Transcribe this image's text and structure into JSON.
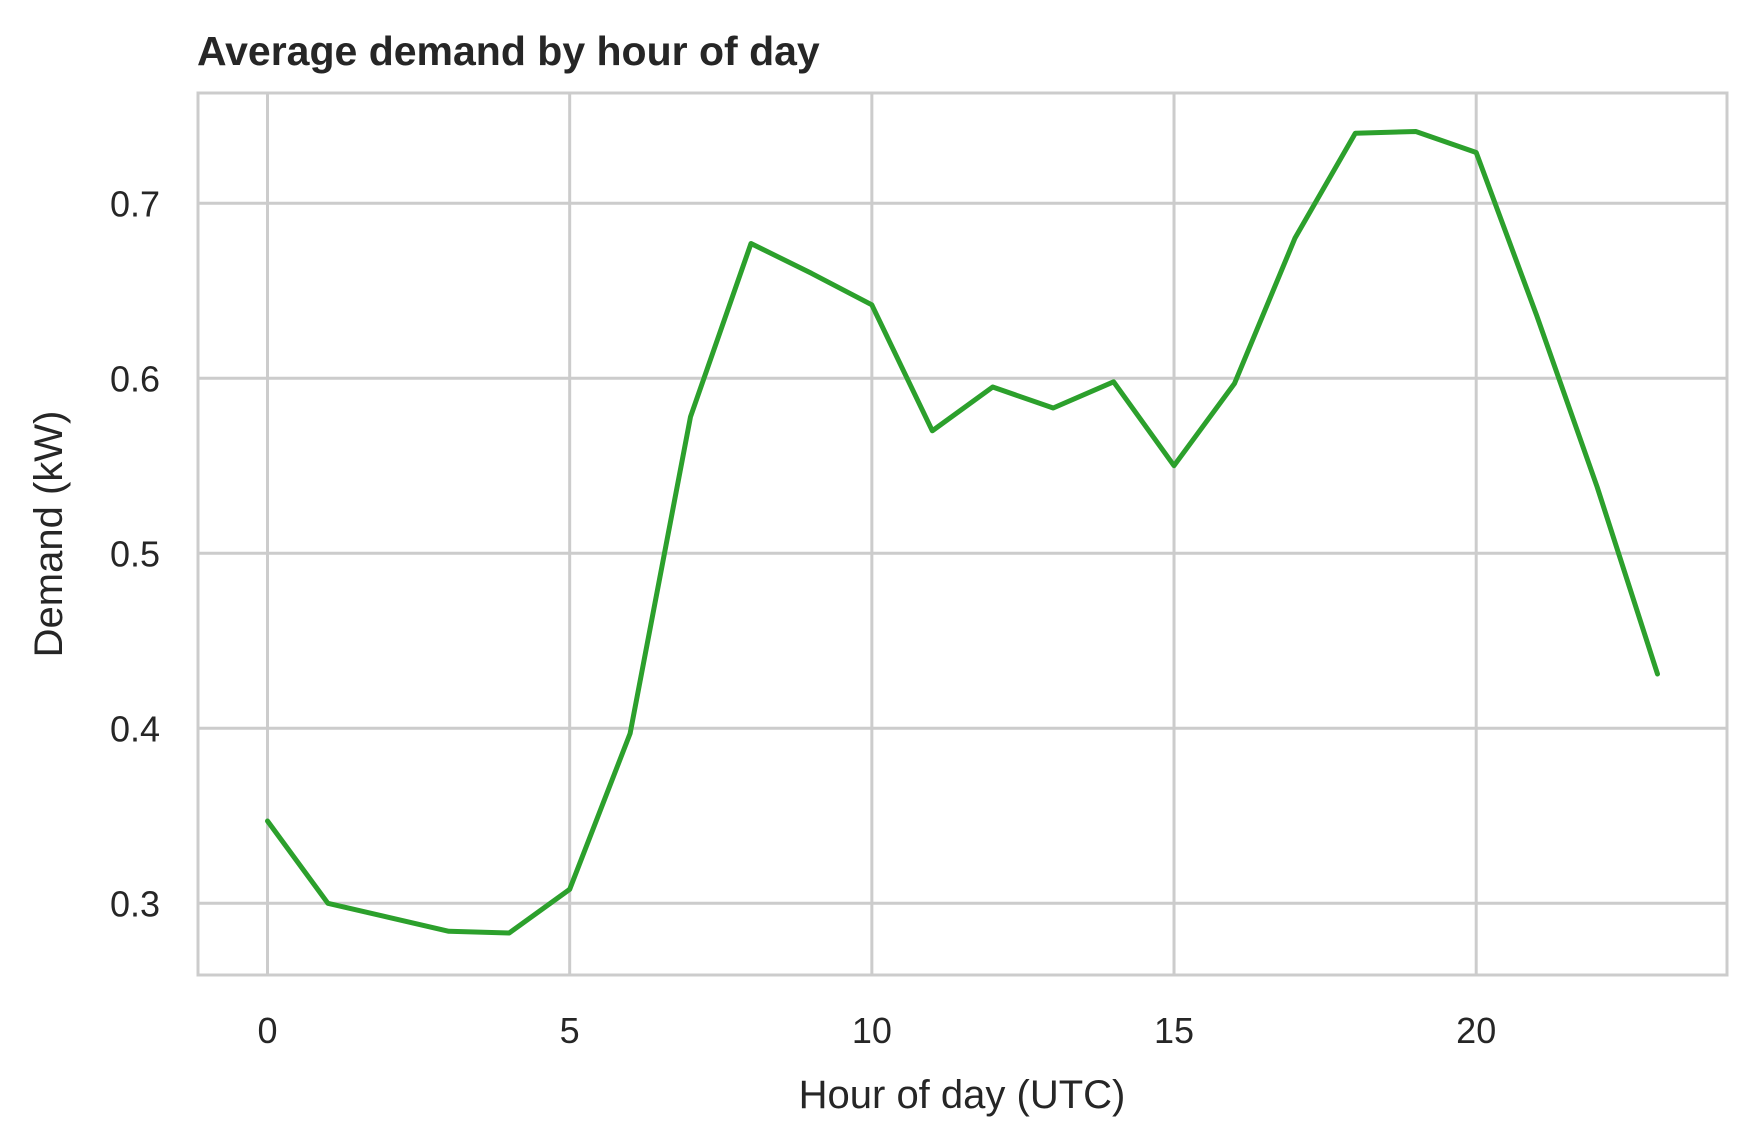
{
  "chart_data": {
    "type": "line",
    "title": "Average demand by hour of day",
    "xlabel": "Hour of day (UTC)",
    "ylabel": "Demand (kW)",
    "xlim": [
      -1.15,
      24.15
    ],
    "ylim": [
      0.259,
      0.763
    ],
    "xticks": [
      0,
      5,
      10,
      15,
      20
    ],
    "yticks": [
      0.3,
      0.4,
      0.5,
      0.6,
      0.7
    ],
    "ytick_labels": [
      "0.3",
      "0.4",
      "0.5",
      "0.6",
      "0.7"
    ],
    "xtick_labels": [
      "0",
      "5",
      "10",
      "15",
      "20"
    ],
    "grid": true,
    "series": [
      {
        "color": "#2ca02c",
        "x": [
          0,
          1,
          2,
          3,
          4,
          5,
          6,
          7,
          8,
          9,
          10,
          11,
          12,
          13,
          14,
          15,
          16,
          17,
          18,
          19,
          20,
          21,
          22,
          23
        ],
        "values": [
          0.347,
          0.3,
          0.292,
          0.284,
          0.283,
          0.308,
          0.397,
          0.578,
          0.677,
          0.66,
          0.642,
          0.57,
          0.595,
          0.583,
          0.598,
          0.55,
          0.597,
          0.68,
          0.74,
          0.741,
          0.729,
          0.636,
          0.538,
          0.431
        ]
      }
    ]
  }
}
